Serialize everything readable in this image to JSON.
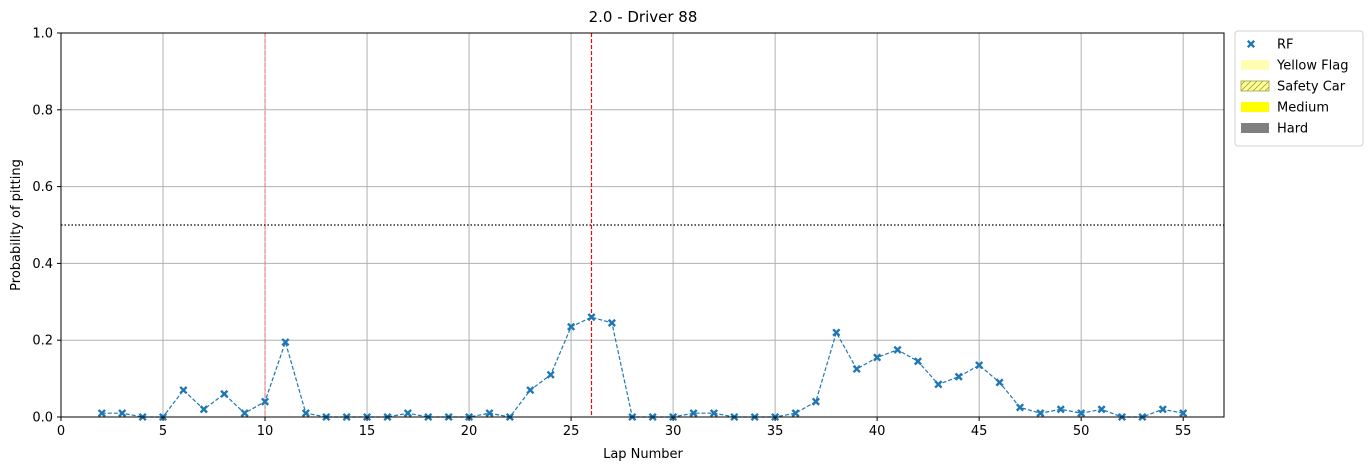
{
  "chart_data": {
    "type": "line",
    "title": "2.0 - Driver 88",
    "xlabel": "Lap Number",
    "ylabel": "Probability of pitting",
    "xlim": [
      0,
      57
    ],
    "ylim": [
      0,
      1.0
    ],
    "x_ticks": [
      0,
      5,
      10,
      15,
      20,
      25,
      30,
      35,
      40,
      45,
      50,
      55
    ],
    "y_ticks": [
      0.0,
      0.2,
      0.4,
      0.6,
      0.8,
      1.0
    ],
    "y_tick_labels": [
      "0.0",
      "0.2",
      "0.4",
      "0.6",
      "0.8",
      "1.0"
    ],
    "grid": true,
    "threshold": 0.5,
    "vertical_markers": [
      {
        "x": 10,
        "color": "#f08080"
      },
      {
        "x": 26,
        "color": "#ff0000"
      }
    ],
    "series": [
      {
        "name": "RF",
        "color": "#1f77b4",
        "marker": "x",
        "x": [
          2,
          3,
          4,
          5,
          6,
          7,
          8,
          9,
          10,
          11,
          12,
          13,
          14,
          15,
          16,
          17,
          18,
          19,
          20,
          21,
          22,
          23,
          24,
          25,
          26,
          27,
          28,
          29,
          30,
          31,
          32,
          33,
          34,
          35,
          36,
          37,
          38,
          39,
          40,
          41,
          42,
          43,
          44,
          45,
          46,
          47,
          48,
          49,
          50,
          51,
          52,
          53,
          54,
          55
        ],
        "y": [
          0.01,
          0.01,
          0.0,
          0.0,
          0.07,
          0.02,
          0.06,
          0.01,
          0.04,
          0.195,
          0.01,
          0.0,
          0.0,
          0.0,
          0.0,
          0.01,
          0.0,
          0.0,
          0.0,
          0.01,
          0.0,
          0.07,
          0.11,
          0.235,
          0.26,
          0.245,
          0.0,
          0.0,
          0.0,
          0.01,
          0.01,
          0.0,
          0.0,
          0.0,
          0.01,
          0.04,
          0.22,
          0.125,
          0.155,
          0.175,
          0.145,
          0.085,
          0.105,
          0.135,
          0.09,
          0.025,
          0.01,
          0.02,
          0.01,
          0.02,
          0.0,
          0.0,
          0.02,
          0.01
        ]
      }
    ],
    "legend": {
      "position": "outside-top-right",
      "entries": [
        {
          "label": "RF",
          "kind": "marker",
          "color": "#1f77b4"
        },
        {
          "label": "Yellow Flag",
          "kind": "patch",
          "color": "#ffffb3"
        },
        {
          "label": "Safety Car",
          "kind": "hatch",
          "color": "#ffff99"
        },
        {
          "label": "Medium",
          "kind": "patch",
          "color": "#ffff00"
        },
        {
          "label": "Hard",
          "kind": "patch",
          "color": "#808080"
        }
      ]
    }
  }
}
